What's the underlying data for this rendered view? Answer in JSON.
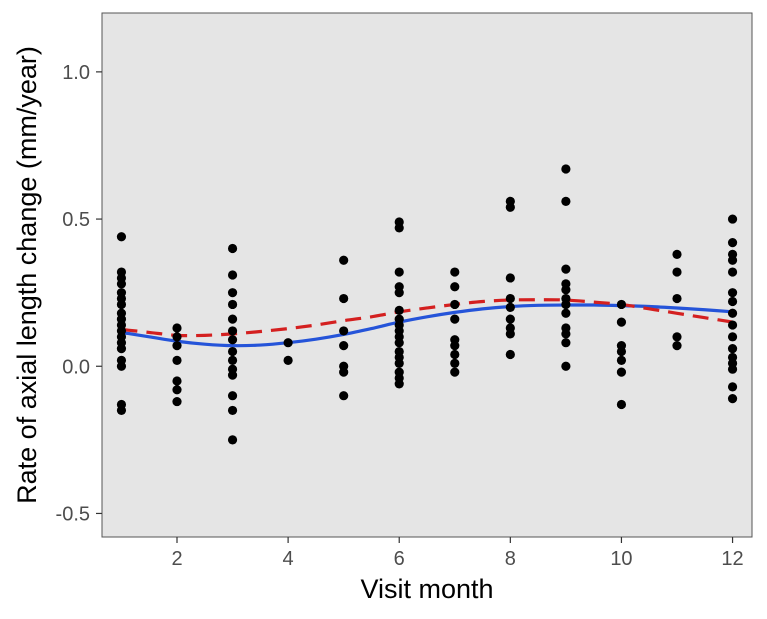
{
  "chart_data": {
    "type": "scatter",
    "title": "",
    "xlabel": "Visit month",
    "ylabel": "Rate of axial length change (mm/year)",
    "xlim": [
      0.65,
      12.35
    ],
    "ylim": [
      -0.58,
      1.2
    ],
    "x_ticks": [
      2,
      4,
      6,
      8,
      10,
      12
    ],
    "x_tick_labels": [
      "2",
      "4",
      "6",
      "8",
      "10",
      "12"
    ],
    "y_ticks": [
      -0.5,
      0.0,
      0.5,
      1.0
    ],
    "y_tick_labels": [
      "-0.5",
      "0.0",
      "0.5",
      "1.0"
    ],
    "grid": false,
    "legend": "none",
    "colors": {
      "panel": "#e5e5e5",
      "points": "#000000",
      "solid_curve": "#2554d9",
      "dashed_curve": "#d42020"
    },
    "points": [
      {
        "x": 1,
        "y": 0.44
      },
      {
        "x": 1,
        "y": 0.32
      },
      {
        "x": 1,
        "y": 0.3
      },
      {
        "x": 1,
        "y": 0.28
      },
      {
        "x": 1,
        "y": 0.25
      },
      {
        "x": 1,
        "y": 0.23
      },
      {
        "x": 1,
        "y": 0.21
      },
      {
        "x": 1,
        "y": 0.18
      },
      {
        "x": 1,
        "y": 0.16
      },
      {
        "x": 1,
        "y": 0.14
      },
      {
        "x": 1,
        "y": 0.12
      },
      {
        "x": 1,
        "y": 0.1
      },
      {
        "x": 1,
        "y": 0.08
      },
      {
        "x": 1,
        "y": 0.06
      },
      {
        "x": 1,
        "y": 0.02
      },
      {
        "x": 1,
        "y": 0.0
      },
      {
        "x": 1,
        "y": -0.13
      },
      {
        "x": 1,
        "y": -0.15
      },
      {
        "x": 2,
        "y": 0.13
      },
      {
        "x": 2,
        "y": 0.1
      },
      {
        "x": 2,
        "y": 0.07
      },
      {
        "x": 2,
        "y": 0.02
      },
      {
        "x": 2,
        "y": -0.05
      },
      {
        "x": 2,
        "y": -0.08
      },
      {
        "x": 2,
        "y": -0.12
      },
      {
        "x": 3,
        "y": 0.4
      },
      {
        "x": 3,
        "y": 0.31
      },
      {
        "x": 3,
        "y": 0.25
      },
      {
        "x": 3,
        "y": 0.21
      },
      {
        "x": 3,
        "y": 0.16
      },
      {
        "x": 3,
        "y": 0.12
      },
      {
        "x": 3,
        "y": 0.09
      },
      {
        "x": 3,
        "y": 0.05
      },
      {
        "x": 3,
        "y": 0.02
      },
      {
        "x": 3,
        "y": -0.01
      },
      {
        "x": 3,
        "y": -0.03
      },
      {
        "x": 3,
        "y": -0.1
      },
      {
        "x": 3,
        "y": -0.15
      },
      {
        "x": 3,
        "y": -0.25
      },
      {
        "x": 4,
        "y": 0.08
      },
      {
        "x": 4,
        "y": 0.02
      },
      {
        "x": 5,
        "y": 0.36
      },
      {
        "x": 5,
        "y": 0.23
      },
      {
        "x": 5,
        "y": 0.12
      },
      {
        "x": 5,
        "y": 0.07
      },
      {
        "x": 5,
        "y": 0.0
      },
      {
        "x": 5,
        "y": -0.02
      },
      {
        "x": 5,
        "y": -0.1
      },
      {
        "x": 6,
        "y": 0.49
      },
      {
        "x": 6,
        "y": 0.47
      },
      {
        "x": 6,
        "y": 0.32
      },
      {
        "x": 6,
        "y": 0.27
      },
      {
        "x": 6,
        "y": 0.25
      },
      {
        "x": 6,
        "y": 0.19
      },
      {
        "x": 6,
        "y": 0.16
      },
      {
        "x": 6,
        "y": 0.14
      },
      {
        "x": 6,
        "y": 0.12
      },
      {
        "x": 6,
        "y": 0.1
      },
      {
        "x": 6,
        "y": 0.08
      },
      {
        "x": 6,
        "y": 0.05
      },
      {
        "x": 6,
        "y": 0.03
      },
      {
        "x": 6,
        "y": 0.01
      },
      {
        "x": 6,
        "y": -0.02
      },
      {
        "x": 6,
        "y": -0.04
      },
      {
        "x": 6,
        "y": -0.06
      },
      {
        "x": 7,
        "y": 0.32
      },
      {
        "x": 7,
        "y": 0.27
      },
      {
        "x": 7,
        "y": 0.21
      },
      {
        "x": 7,
        "y": 0.16
      },
      {
        "x": 7,
        "y": 0.09
      },
      {
        "x": 7,
        "y": 0.07
      },
      {
        "x": 7,
        "y": 0.04
      },
      {
        "x": 7,
        "y": 0.01
      },
      {
        "x": 7,
        "y": -0.02
      },
      {
        "x": 8,
        "y": 0.56
      },
      {
        "x": 8,
        "y": 0.54
      },
      {
        "x": 8,
        "y": 0.3
      },
      {
        "x": 8,
        "y": 0.23
      },
      {
        "x": 8,
        "y": 0.2
      },
      {
        "x": 8,
        "y": 0.16
      },
      {
        "x": 8,
        "y": 0.13
      },
      {
        "x": 8,
        "y": 0.11
      },
      {
        "x": 8,
        "y": 0.04
      },
      {
        "x": 9,
        "y": 0.67
      },
      {
        "x": 9,
        "y": 0.56
      },
      {
        "x": 9,
        "y": 0.33
      },
      {
        "x": 9,
        "y": 0.28
      },
      {
        "x": 9,
        "y": 0.26
      },
      {
        "x": 9,
        "y": 0.23
      },
      {
        "x": 9,
        "y": 0.21
      },
      {
        "x": 9,
        "y": 0.18
      },
      {
        "x": 9,
        "y": 0.13
      },
      {
        "x": 9,
        "y": 0.11
      },
      {
        "x": 9,
        "y": 0.08
      },
      {
        "x": 9,
        "y": 0.0
      },
      {
        "x": 10,
        "y": 0.21
      },
      {
        "x": 10,
        "y": 0.15
      },
      {
        "x": 10,
        "y": 0.07
      },
      {
        "x": 10,
        "y": 0.05
      },
      {
        "x": 10,
        "y": 0.02
      },
      {
        "x": 10,
        "y": -0.02
      },
      {
        "x": 10,
        "y": -0.13
      },
      {
        "x": 11,
        "y": 0.38
      },
      {
        "x": 11,
        "y": 0.32
      },
      {
        "x": 11,
        "y": 0.23
      },
      {
        "x": 11,
        "y": 0.1
      },
      {
        "x": 11,
        "y": 0.07
      },
      {
        "x": 12,
        "y": 0.5
      },
      {
        "x": 12,
        "y": 0.42
      },
      {
        "x": 12,
        "y": 0.38
      },
      {
        "x": 12,
        "y": 0.36
      },
      {
        "x": 12,
        "y": 0.32
      },
      {
        "x": 12,
        "y": 0.25
      },
      {
        "x": 12,
        "y": 0.22
      },
      {
        "x": 12,
        "y": 0.18
      },
      {
        "x": 12,
        "y": 0.14
      },
      {
        "x": 12,
        "y": 0.1
      },
      {
        "x": 12,
        "y": 0.06
      },
      {
        "x": 12,
        "y": 0.03
      },
      {
        "x": 12,
        "y": 0.01
      },
      {
        "x": 12,
        "y": -0.01
      },
      {
        "x": 12,
        "y": -0.07
      },
      {
        "x": 12,
        "y": -0.11
      }
    ],
    "series": [
      {
        "style": "solid",
        "x": [
          1,
          1.5,
          2,
          2.5,
          3,
          3.5,
          4,
          4.5,
          5,
          5.5,
          6,
          6.5,
          7,
          7.5,
          8,
          8.5,
          9,
          9.5,
          10,
          10.5,
          11,
          11.5,
          12
        ],
        "y": [
          0.115,
          0.1,
          0.085,
          0.075,
          0.07,
          0.072,
          0.08,
          0.092,
          0.108,
          0.128,
          0.15,
          0.168,
          0.183,
          0.195,
          0.203,
          0.207,
          0.208,
          0.208,
          0.206,
          0.203,
          0.198,
          0.192,
          0.185
        ]
      },
      {
        "style": "dashed",
        "x": [
          1,
          1.5,
          2,
          2.5,
          3,
          3.5,
          4,
          4.5,
          5,
          5.5,
          6,
          6.5,
          7,
          7.5,
          8,
          8.5,
          9,
          9.5,
          10,
          10.5,
          11,
          11.5,
          12
        ],
        "y": [
          0.125,
          0.115,
          0.105,
          0.105,
          0.11,
          0.118,
          0.128,
          0.14,
          0.155,
          0.168,
          0.185,
          0.198,
          0.21,
          0.22,
          0.225,
          0.226,
          0.225,
          0.218,
          0.21,
          0.195,
          0.18,
          0.165,
          0.15
        ]
      }
    ]
  }
}
